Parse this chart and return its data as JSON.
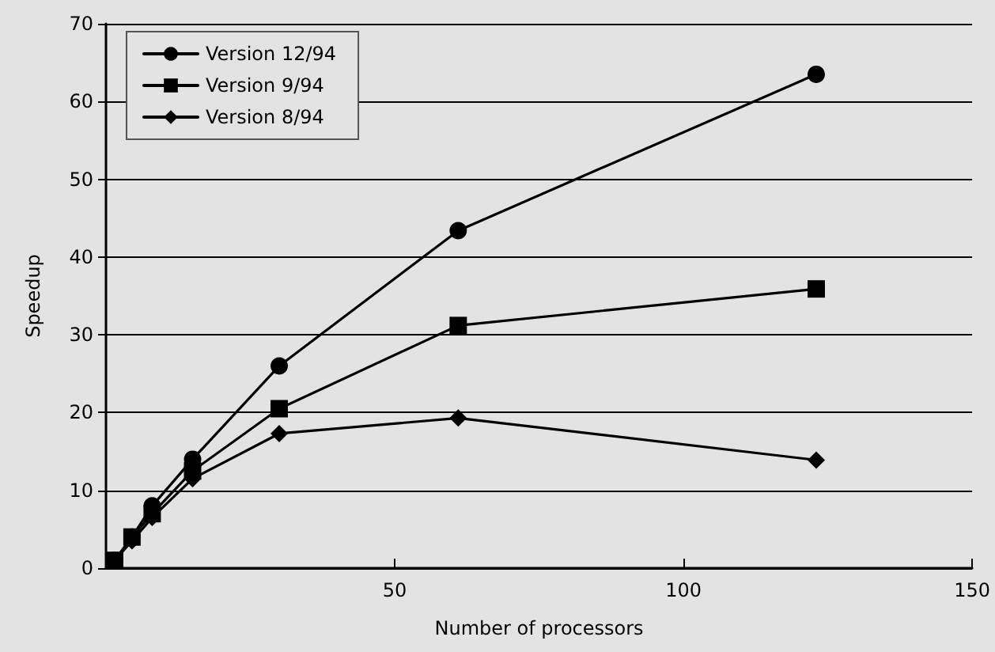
{
  "chart_data": {
    "type": "line",
    "xlabel": "Number of processors",
    "ylabel": "Speedup",
    "xlim": [
      0,
      150
    ],
    "xticks": [
      50,
      100,
      150
    ],
    "ylim": [
      0,
      70
    ],
    "yticks": [
      0,
      10,
      20,
      30,
      40,
      50,
      60,
      70
    ],
    "grid": "y",
    "legend": "top left",
    "line_style": "solid",
    "x": [
      1.5,
      4.5,
      8,
      15,
      30,
      61,
      123
    ],
    "series": [
      {
        "name": "Version 12/94",
        "color": "#000000",
        "marker": "circle",
        "values": [
          1,
          4,
          8,
          14,
          26,
          43.4,
          63.5
        ]
      },
      {
        "name": "Version 9/94",
        "color": "#000000",
        "marker": "square",
        "values": [
          1,
          4,
          7,
          12.5,
          20.5,
          31.2,
          35.9
        ]
      },
      {
        "name": "Version 8/94",
        "color": "#000000",
        "marker": "diamond",
        "values": [
          1,
          3.5,
          6.5,
          11.5,
          17.3,
          19.3,
          13.9
        ]
      }
    ]
  }
}
